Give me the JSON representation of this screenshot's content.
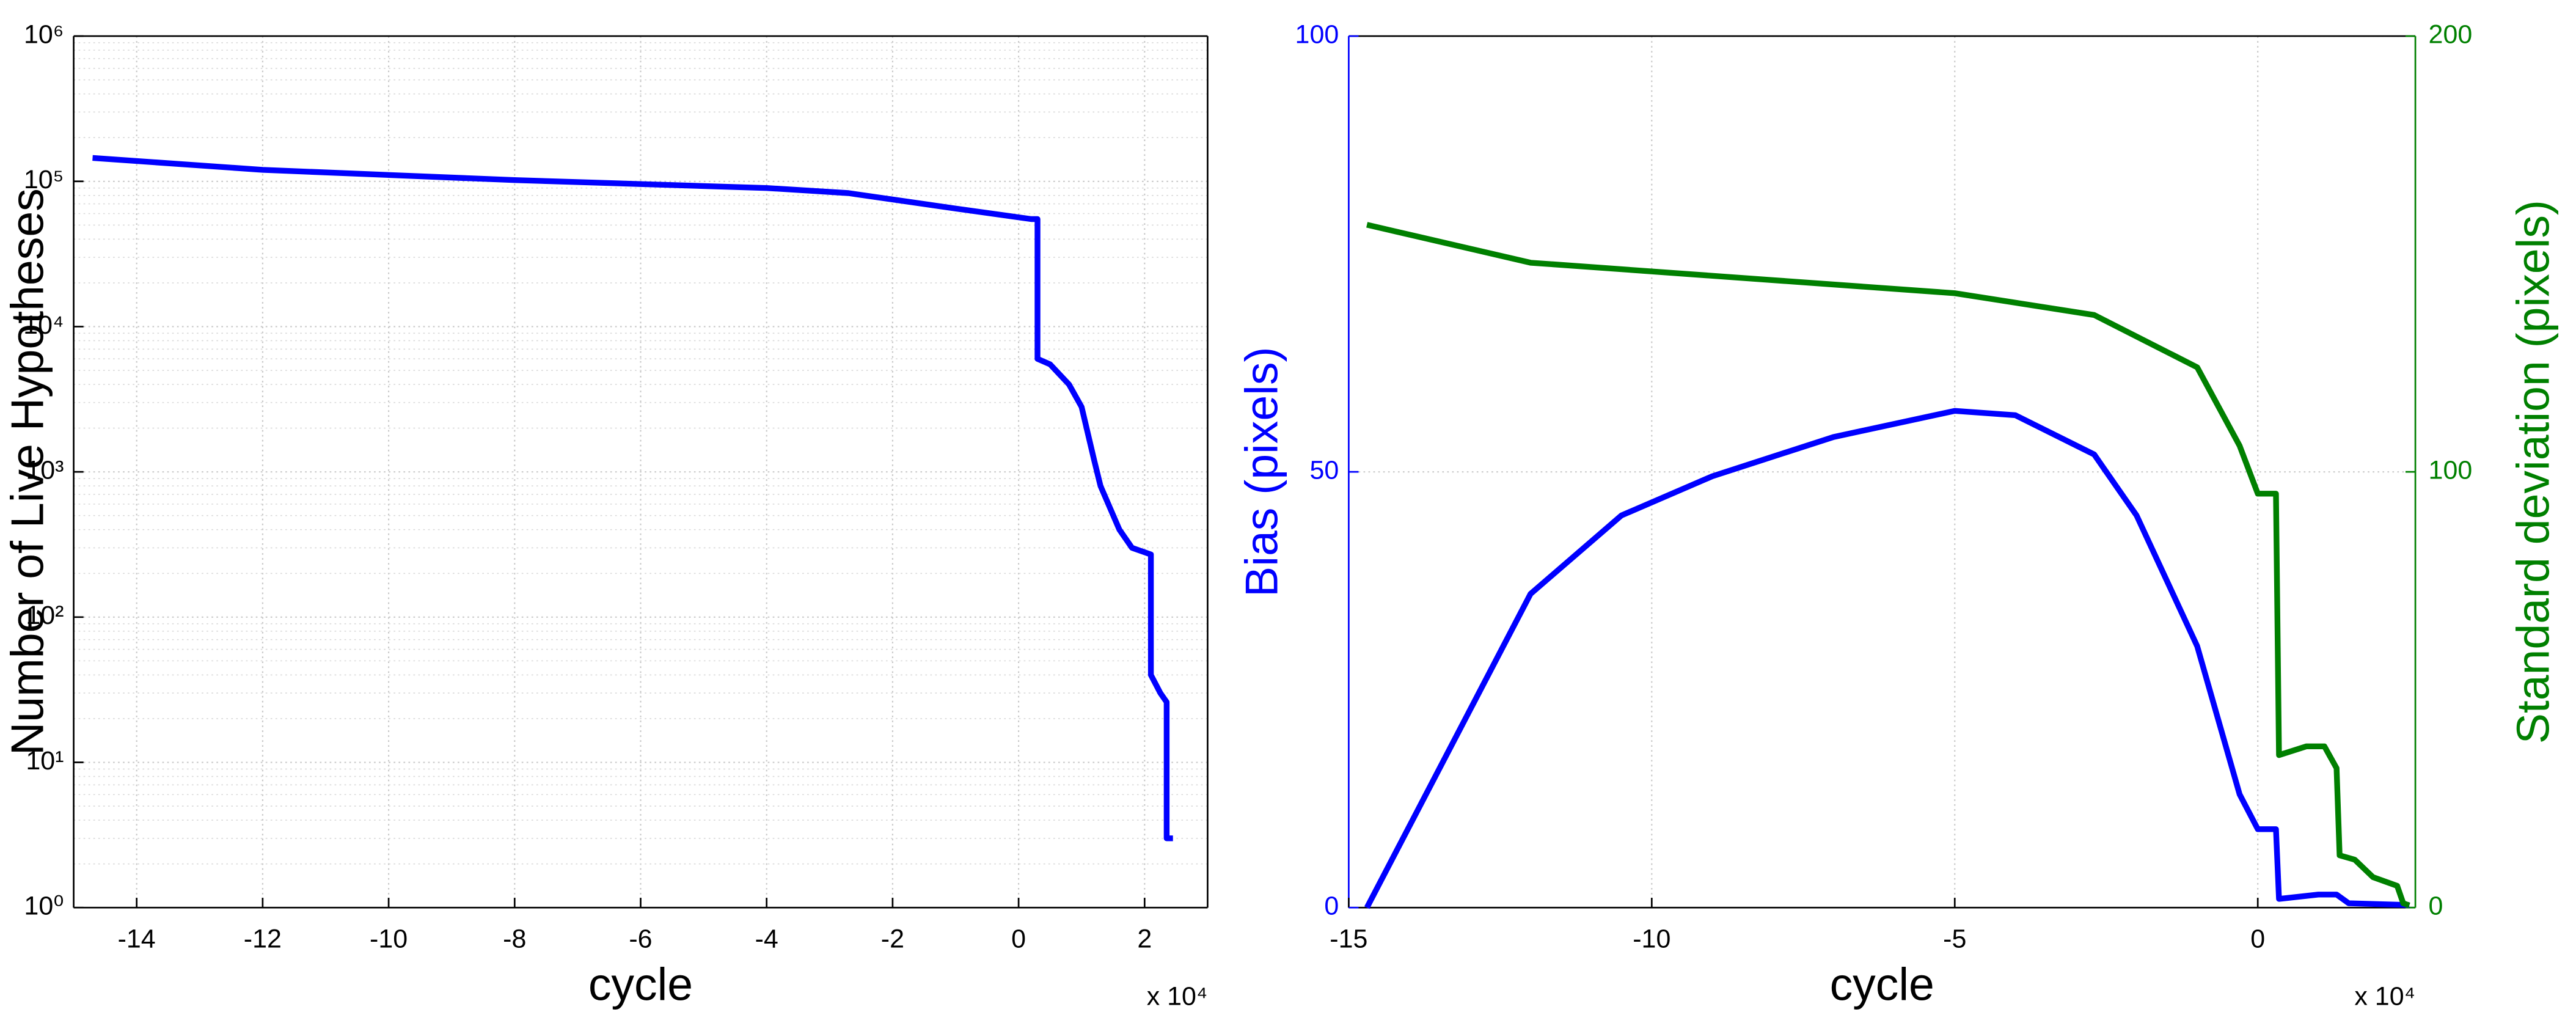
{
  "chart_data": [
    {
      "type": "line",
      "xlabel": "cycle",
      "ylabel": "Number of Live Hypotheses",
      "x_multiplier": "x 10⁴",
      "xlim": [
        -15,
        3
      ],
      "xticks": [
        -14,
        -12,
        -10,
        -8,
        -6,
        -4,
        -2,
        0,
        2
      ],
      "ylim": [
        1,
        1000000
      ],
      "log_y": true,
      "yticks": [
        {
          "value": 1,
          "label": "10⁰"
        },
        {
          "value": 10,
          "label": "10¹"
        },
        {
          "value": 100,
          "label": "10²"
        },
        {
          "value": 1000,
          "label": "10³"
        },
        {
          "value": 10000,
          "label": "10⁴"
        },
        {
          "value": 100000,
          "label": "10⁵"
        },
        {
          "value": 1000000,
          "label": "10⁶"
        }
      ],
      "grid": true,
      "series": [
        {
          "color": "#0000ff",
          "x": [
            -14.7,
            -12,
            -8,
            -4,
            -2.7,
            -1,
            0.2,
            0.3,
            0.3,
            0.5,
            0.8,
            1,
            1.2,
            1.3,
            1.6,
            1.8,
            2.1,
            2.1,
            2.25,
            2.35,
            2.35,
            2.45
          ],
          "values": [
            145000,
            120000,
            102000,
            90000,
            83000,
            65000,
            55000,
            55000,
            6000,
            5500,
            4000,
            2800,
            1200,
            800,
            400,
            300,
            270,
            40,
            30,
            26,
            3,
            3
          ]
        }
      ]
    },
    {
      "type": "line",
      "xlabel": "cycle",
      "ylabel": "Bias (pixels)",
      "y2label": "Standard deviation (pixels)",
      "x_multiplier": "x 10⁴",
      "xlim": [
        -15,
        2.6
      ],
      "xticks": [
        -15,
        -10,
        -5,
        0
      ],
      "ylim": [
        0,
        100
      ],
      "yticks": [
        0,
        50,
        100
      ],
      "ycolor": "#0000ff",
      "y2lim": [
        0,
        200
      ],
      "y2ticks": [
        0,
        100,
        200
      ],
      "y2color": "#008000",
      "grid": true,
      "series": [
        {
          "color": "#0000ff",
          "x": [
            -14.7,
            -12,
            -10.5,
            -9,
            -7,
            -5,
            -4,
            -2.7,
            -2,
            -1,
            -0.3,
            0,
            0.3,
            0.35,
            1,
            1.3,
            1.5,
            2.5
          ],
          "values": [
            0,
            36,
            45,
            49.5,
            54,
            57,
            56.5,
            52,
            45,
            30,
            13,
            9,
            9,
            1,
            1.5,
            1.5,
            0.5,
            0.3
          ]
        },
        {
          "color": "#008000",
          "axis": "y2",
          "x": [
            -14.7,
            -12,
            -8,
            -5,
            -2.7,
            -1,
            -0.3,
            0,
            0.3,
            0.35,
            0.8,
            1.1,
            1.3,
            1.35,
            1.6,
            1.9,
            2.3,
            2.4,
            2.5
          ],
          "values": [
            156.7,
            148,
            144,
            141,
            136,
            124,
            106,
            95,
            95,
            35,
            37,
            37,
            32,
            12,
            11,
            7,
            5,
            1,
            0.5
          ]
        }
      ]
    }
  ]
}
